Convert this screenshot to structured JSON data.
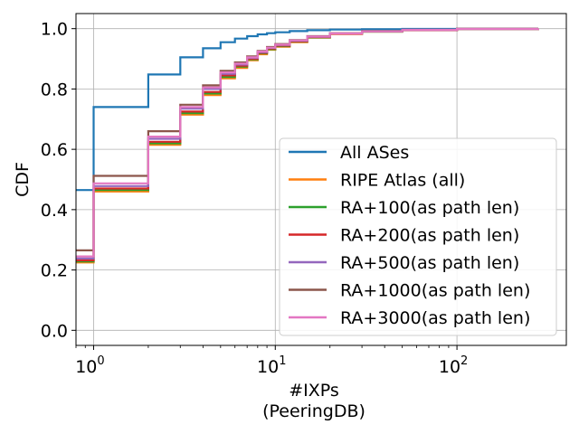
{
  "chart_data": {
    "type": "line",
    "xscale": "log",
    "xlim": [
      0.8,
      400
    ],
    "ylim": [
      -0.05,
      1.05
    ],
    "xlabel": "#IXPs",
    "xlabel2": "(PeeringDB)",
    "ylabel": "CDF",
    "grid": true,
    "legend_position": "lower right",
    "x_ticks": [
      {
        "value": 1,
        "base": "10",
        "exp": "0"
      },
      {
        "value": 10,
        "base": "10",
        "exp": "1"
      },
      {
        "value": 100,
        "base": "10",
        "exp": "2"
      }
    ],
    "y_ticks": [
      {
        "value": 0.0,
        "label": "0.0"
      },
      {
        "value": 0.2,
        "label": "0.2"
      },
      {
        "value": 0.4,
        "label": "0.4"
      },
      {
        "value": 0.6,
        "label": "0.6"
      },
      {
        "value": 0.8,
        "label": "0.8"
      },
      {
        "value": 1.0,
        "label": "1.0"
      }
    ],
    "series": [
      {
        "name": "All ASes",
        "color": "#1f77b4",
        "x": [
          0.8,
          1,
          2,
          3,
          4,
          5,
          6,
          7,
          8,
          9,
          10,
          12,
          15,
          20,
          30,
          50,
          100,
          280
        ],
        "y": [
          0.465,
          0.74,
          0.848,
          0.905,
          0.935,
          0.955,
          0.967,
          0.975,
          0.981,
          0.985,
          0.988,
          0.992,
          0.995,
          0.997,
          0.998,
          0.999,
          1.0,
          1.0
        ]
      },
      {
        "name": "RIPE Atlas (all)",
        "color": "#ff7f0e",
        "x": [
          0.8,
          1,
          2,
          3,
          4,
          5,
          6,
          7,
          8,
          9,
          10,
          12,
          15,
          20,
          30,
          50,
          100,
          280
        ],
        "y": [
          0.225,
          0.46,
          0.615,
          0.715,
          0.78,
          0.835,
          0.87,
          0.895,
          0.915,
          0.93,
          0.94,
          0.955,
          0.97,
          0.982,
          0.99,
          0.995,
          0.999,
          1.0
        ]
      },
      {
        "name": "RA+100(as path len)",
        "color": "#2ca02c",
        "x": [
          0.8,
          1,
          2,
          3,
          4,
          5,
          6,
          7,
          8,
          9,
          10,
          12,
          15,
          20,
          30,
          50,
          100,
          280
        ],
        "y": [
          0.228,
          0.465,
          0.62,
          0.72,
          0.785,
          0.84,
          0.874,
          0.898,
          0.918,
          0.932,
          0.942,
          0.957,
          0.971,
          0.983,
          0.99,
          0.995,
          0.999,
          1.0
        ]
      },
      {
        "name": "RA+200(as path len)",
        "color": "#d62728",
        "x": [
          0.8,
          1,
          2,
          3,
          4,
          5,
          6,
          7,
          8,
          9,
          10,
          12,
          15,
          20,
          30,
          50,
          100,
          280
        ],
        "y": [
          0.232,
          0.47,
          0.625,
          0.725,
          0.79,
          0.845,
          0.877,
          0.9,
          0.92,
          0.934,
          0.944,
          0.958,
          0.972,
          0.983,
          0.991,
          0.995,
          0.999,
          1.0
        ]
      },
      {
        "name": "RA+500(as path len)",
        "color": "#9467bd",
        "x": [
          0.8,
          1,
          2,
          3,
          4,
          5,
          6,
          7,
          8,
          9,
          10,
          12,
          15,
          20,
          30,
          50,
          100,
          280
        ],
        "y": [
          0.238,
          0.478,
          0.635,
          0.735,
          0.8,
          0.85,
          0.881,
          0.903,
          0.922,
          0.936,
          0.946,
          0.96,
          0.973,
          0.984,
          0.991,
          0.996,
          0.999,
          1.0
        ]
      },
      {
        "name": "RA+1000(as path len)",
        "color": "#8c564b",
        "x": [
          0.8,
          1,
          2,
          3,
          4,
          5,
          6,
          7,
          8,
          9,
          10,
          12,
          15,
          20,
          30,
          50,
          100,
          280
        ],
        "y": [
          0.265,
          0.512,
          0.66,
          0.748,
          0.812,
          0.86,
          0.888,
          0.908,
          0.926,
          0.939,
          0.949,
          0.962,
          0.975,
          0.985,
          0.992,
          0.996,
          0.999,
          1.0
        ]
      },
      {
        "name": "RA+3000(as path len)",
        "color": "#e377c2",
        "x": [
          0.8,
          1,
          2,
          3,
          4,
          5,
          6,
          7,
          8,
          9,
          10,
          12,
          15,
          20,
          30,
          50,
          100,
          280
        ],
        "y": [
          0.245,
          0.487,
          0.642,
          0.74,
          0.805,
          0.855,
          0.884,
          0.905,
          0.924,
          0.937,
          0.947,
          0.961,
          0.974,
          0.984,
          0.991,
          0.996,
          0.999,
          1.0
        ]
      }
    ]
  }
}
